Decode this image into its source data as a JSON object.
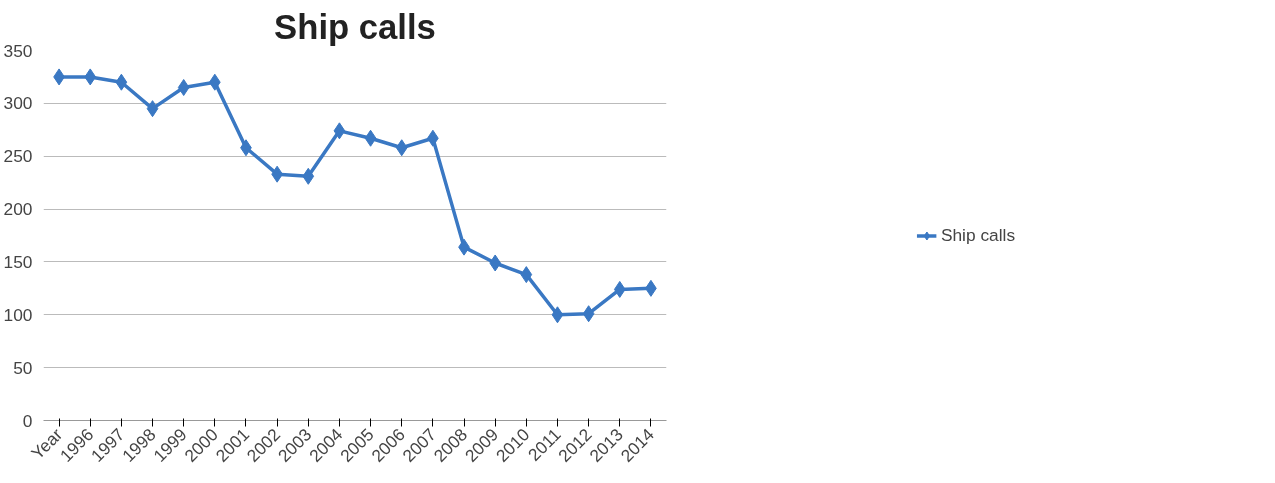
{
  "chart_data": {
    "type": "line",
    "title": "Ship calls",
    "categories": [
      "Year",
      "1996",
      "1997",
      "1998",
      "1999",
      "2000",
      "2001",
      "2002",
      "2003",
      "2004",
      "2005",
      "2006",
      "2007",
      "2008",
      "2009",
      "2010",
      "2011",
      "2012",
      "2013",
      "2014"
    ],
    "series": [
      {
        "name": "Ship calls",
        "color": "#3a78c3",
        "values": [
          325,
          325,
          320,
          295,
          315,
          320,
          258,
          233,
          231,
          274,
          267,
          258,
          267,
          164,
          149,
          138,
          100,
          101,
          124,
          125
        ]
      }
    ],
    "ylim": [
      0,
      350
    ],
    "yticks": [
      0,
      50,
      100,
      150,
      200,
      250,
      300,
      350
    ],
    "grid": "y",
    "legend": "right",
    "marker": "diamond",
    "line_style": "solid"
  }
}
